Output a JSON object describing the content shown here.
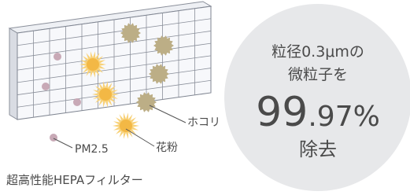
{
  "labels": {
    "dust": "ホコリ",
    "pollen": "花粉",
    "pm": "PM2.5"
  },
  "caption": "超高性能HEPAフィルター",
  "badge": {
    "line1": "粒径0.3μmの",
    "line2": "微粒子を",
    "percent_main": "99",
    "percent_rest": ".97%",
    "line3": "除去"
  }
}
